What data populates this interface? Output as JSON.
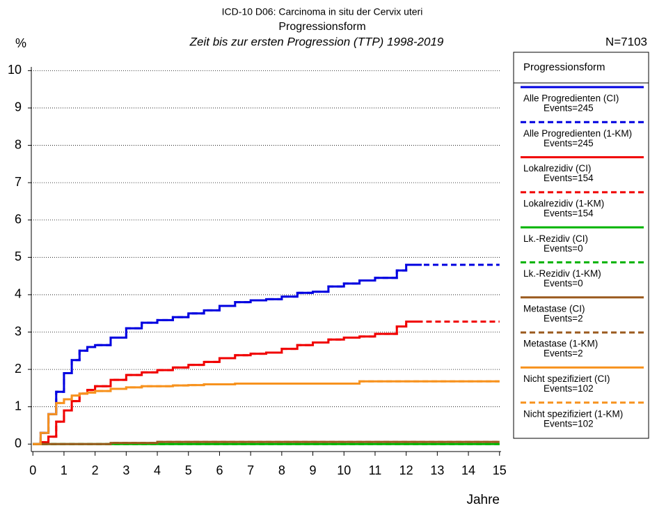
{
  "chart_data": {
    "type": "step-line",
    "supertitle": "ICD-10 D06: Carcinoma in situ der Cervix uteri",
    "title": "Progressionsform",
    "subtitle": "Zeit bis zur ersten Progression (TTP) 1998-2019",
    "y_label": "%",
    "x_label": "Jahre",
    "n_label": "N=7103",
    "legend_title": "Progressionsform",
    "grid": true,
    "xlim": [
      -0.05,
      15.05
    ],
    "ylim": [
      -0.2,
      10.1
    ],
    "xticks": [
      0,
      1,
      2,
      3,
      4,
      5,
      6,
      7,
      8,
      9,
      10,
      11,
      12,
      13,
      14,
      15
    ],
    "yticks": [
      0,
      1,
      2,
      3,
      4,
      5,
      6,
      7,
      8,
      9,
      10
    ],
    "x": [
      0,
      0.25,
      0.5,
      0.75,
      1,
      1.25,
      1.5,
      1.75,
      2,
      2.5,
      3,
      3.5,
      4,
      4.5,
      5,
      5.5,
      6,
      6.5,
      7,
      7.5,
      8,
      8.5,
      9,
      9.5,
      10,
      10.5,
      11,
      11.5,
      11.7,
      12,
      12.5,
      13,
      14,
      15
    ],
    "series": [
      {
        "name": "Alle Progredienten (CI)",
        "events": "Events=245",
        "color": "#0000e0",
        "dash": false,
        "values": [
          0,
          0.3,
          0.8,
          1.4,
          1.9,
          2.25,
          2.5,
          2.6,
          2.65,
          2.85,
          3.1,
          3.25,
          3.32,
          3.4,
          3.5,
          3.58,
          3.7,
          3.8,
          3.85,
          3.88,
          3.95,
          4.05,
          4.08,
          4.22,
          4.3,
          4.38,
          4.45,
          4.45,
          4.65,
          4.8,
          4.8,
          null,
          null,
          null
        ]
      },
      {
        "name": "Alle Progredienten (1-KM)",
        "events": "Events=245",
        "color": "#0000e0",
        "dash": true,
        "values": [
          0,
          0.3,
          0.8,
          1.4,
          1.9,
          2.25,
          2.5,
          2.6,
          2.65,
          2.85,
          3.1,
          3.25,
          3.32,
          3.4,
          3.5,
          3.58,
          3.7,
          3.8,
          3.85,
          3.88,
          3.95,
          4.05,
          4.08,
          4.22,
          4.3,
          4.38,
          4.45,
          4.45,
          4.65,
          4.8,
          4.8,
          4.8,
          4.8,
          4.8
        ]
      },
      {
        "name": "Lokalrezidiv (CI)",
        "events": "Events=154",
        "color": "#f00000",
        "dash": false,
        "values": [
          0,
          0.05,
          0.2,
          0.6,
          0.9,
          1.15,
          1.35,
          1.45,
          1.55,
          1.72,
          1.85,
          1.92,
          1.98,
          2.05,
          2.12,
          2.2,
          2.3,
          2.38,
          2.42,
          2.45,
          2.55,
          2.65,
          2.72,
          2.8,
          2.85,
          2.88,
          2.95,
          2.95,
          3.15,
          3.28,
          3.28,
          null,
          null,
          null
        ]
      },
      {
        "name": "Lokalrezidiv (1-KM)",
        "events": "Events=154",
        "color": "#f00000",
        "dash": true,
        "values": [
          0,
          0.05,
          0.2,
          0.6,
          0.9,
          1.15,
          1.35,
          1.45,
          1.55,
          1.72,
          1.85,
          1.92,
          1.98,
          2.05,
          2.12,
          2.2,
          2.3,
          2.38,
          2.42,
          2.45,
          2.55,
          2.65,
          2.72,
          2.8,
          2.85,
          2.88,
          2.95,
          2.95,
          3.15,
          3.28,
          3.28,
          3.28,
          3.28,
          3.28
        ]
      },
      {
        "name": "Lk.-Rezidiv (CI)",
        "events": "Events=0",
        "color": "#00b400",
        "dash": false,
        "values": [
          0,
          0,
          0,
          0,
          0,
          0,
          0,
          0,
          0,
          0,
          0,
          0,
          0,
          0,
          0,
          0,
          0,
          0,
          0,
          0,
          0,
          0,
          0,
          0,
          0,
          0,
          0,
          0,
          0,
          0,
          0,
          0,
          0,
          0
        ]
      },
      {
        "name": "Lk.-Rezidiv (1-KM)",
        "events": "Events=0",
        "color": "#00b400",
        "dash": true,
        "values": [
          0,
          0,
          0,
          0,
          0,
          0,
          0,
          0,
          0,
          0,
          0,
          0,
          0,
          0,
          0,
          0,
          0,
          0,
          0,
          0,
          0,
          0,
          0,
          0,
          0,
          0,
          0,
          0,
          0,
          0,
          0,
          0,
          0,
          0
        ]
      },
      {
        "name": "Metastase (CI)",
        "events": "Events=2",
        "color": "#9b5a1e",
        "dash": false,
        "values": [
          0,
          0,
          0,
          0,
          0,
          0,
          0,
          0,
          0,
          0.03,
          0.03,
          0.03,
          0.06,
          0.06,
          0.06,
          0.06,
          0.06,
          0.06,
          0.06,
          0.06,
          0.06,
          0.06,
          0.06,
          0.06,
          0.06,
          0.06,
          0.06,
          0.06,
          0.06,
          0.06,
          0.06,
          0.06,
          0.06,
          0.06
        ]
      },
      {
        "name": "Metastase (1-KM)",
        "events": "Events=2",
        "color": "#9b5a1e",
        "dash": true,
        "values": [
          0,
          0,
          0,
          0,
          0,
          0,
          0,
          0,
          0,
          0.03,
          0.03,
          0.03,
          0.06,
          0.06,
          0.06,
          0.06,
          0.06,
          0.06,
          0.06,
          0.06,
          0.06,
          0.06,
          0.06,
          0.06,
          0.06,
          0.06,
          0.06,
          0.06,
          0.06,
          0.06,
          0.06,
          0.06,
          0.06,
          0.06
        ]
      },
      {
        "name": "Nicht spezifiziert (CI)",
        "events": "Events=102",
        "color": "#f7921e",
        "dash": false,
        "values": [
          0,
          0.3,
          0.8,
          1.1,
          1.2,
          1.3,
          1.35,
          1.38,
          1.42,
          1.48,
          1.52,
          1.55,
          1.55,
          1.57,
          1.58,
          1.6,
          1.6,
          1.62,
          1.62,
          1.62,
          1.62,
          1.62,
          1.62,
          1.62,
          1.62,
          1.68,
          1.68,
          1.68,
          1.68,
          1.68,
          1.68,
          1.68,
          1.68,
          1.68
        ]
      },
      {
        "name": "Nicht spezifiziert (1-KM)",
        "events": "Events=102",
        "color": "#f7921e",
        "dash": true,
        "values": [
          0,
          0.3,
          0.8,
          1.1,
          1.2,
          1.3,
          1.35,
          1.38,
          1.42,
          1.48,
          1.52,
          1.55,
          1.55,
          1.57,
          1.58,
          1.6,
          1.6,
          1.62,
          1.62,
          1.62,
          1.62,
          1.62,
          1.62,
          1.62,
          1.62,
          1.68,
          1.68,
          1.68,
          1.68,
          1.68,
          1.68,
          1.68,
          1.68,
          1.68
        ]
      }
    ]
  }
}
